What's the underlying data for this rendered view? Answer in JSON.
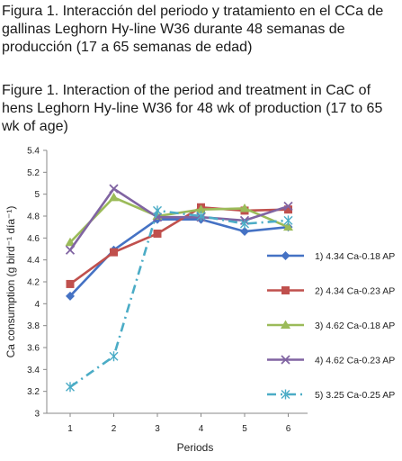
{
  "captions": {
    "spanish": "Figura 1. Interacción del periodo y tratamiento en el CCa de gallinas Leghorn Hy-line W36 durante 48 semanas de producción (17 a 65 semanas de edad)",
    "english": "Figure 1. Interaction of the period and treatment in CaC of hens Leghorn Hy-line W36 for 48 wk of production (17 to 65 wk of age)"
  },
  "chart_data": {
    "type": "line",
    "title": "",
    "xlabel": "Periods",
    "ylabel": "Ca consumption (g bird⁻¹ día⁻¹)",
    "x": [
      1,
      2,
      3,
      4,
      5,
      6
    ],
    "x_tick_labels": [
      "1",
      "2",
      "3",
      "4",
      "5",
      "6"
    ],
    "ylim": [
      3,
      5.4
    ],
    "y_ticks": [
      "3",
      "3.2",
      "3.4",
      "3.6",
      "3.8",
      "4",
      "4.2",
      "4.4",
      "4.6",
      "4.8",
      "5",
      "5.2",
      "5.4"
    ],
    "grid": false,
    "legend_position": "right",
    "series": [
      {
        "name": "1) 4.34  Ca-0.18  AP",
        "values": [
          4.07,
          4.49,
          4.77,
          4.77,
          4.66,
          4.7
        ],
        "color": "#4572c4",
        "marker": "diamond",
        "dash": "solid"
      },
      {
        "name": "2) 4.34  Ca-0.23  AP",
        "values": [
          4.18,
          4.47,
          4.64,
          4.88,
          4.85,
          4.86
        ],
        "color": "#c0504d",
        "marker": "square",
        "dash": "solid"
      },
      {
        "name": "3) 4.62  Ca-0.18  AP",
        "values": [
          4.56,
          4.97,
          4.8,
          4.86,
          4.87,
          4.7
        ],
        "color": "#9bbb59",
        "marker": "triangle",
        "dash": "solid"
      },
      {
        "name": "4) 4.62  Ca-0.23  AP",
        "values": [
          4.49,
          5.05,
          4.79,
          4.79,
          4.76,
          4.89
        ],
        "color": "#8064a2",
        "marker": "x",
        "dash": "solid"
      },
      {
        "name": "5) 3.25  Ca-0.25  AP",
        "values": [
          3.24,
          3.52,
          4.85,
          4.8,
          4.73,
          4.76
        ],
        "color": "#4bacc6",
        "marker": "asterisk",
        "dash": "dashdot"
      }
    ]
  }
}
